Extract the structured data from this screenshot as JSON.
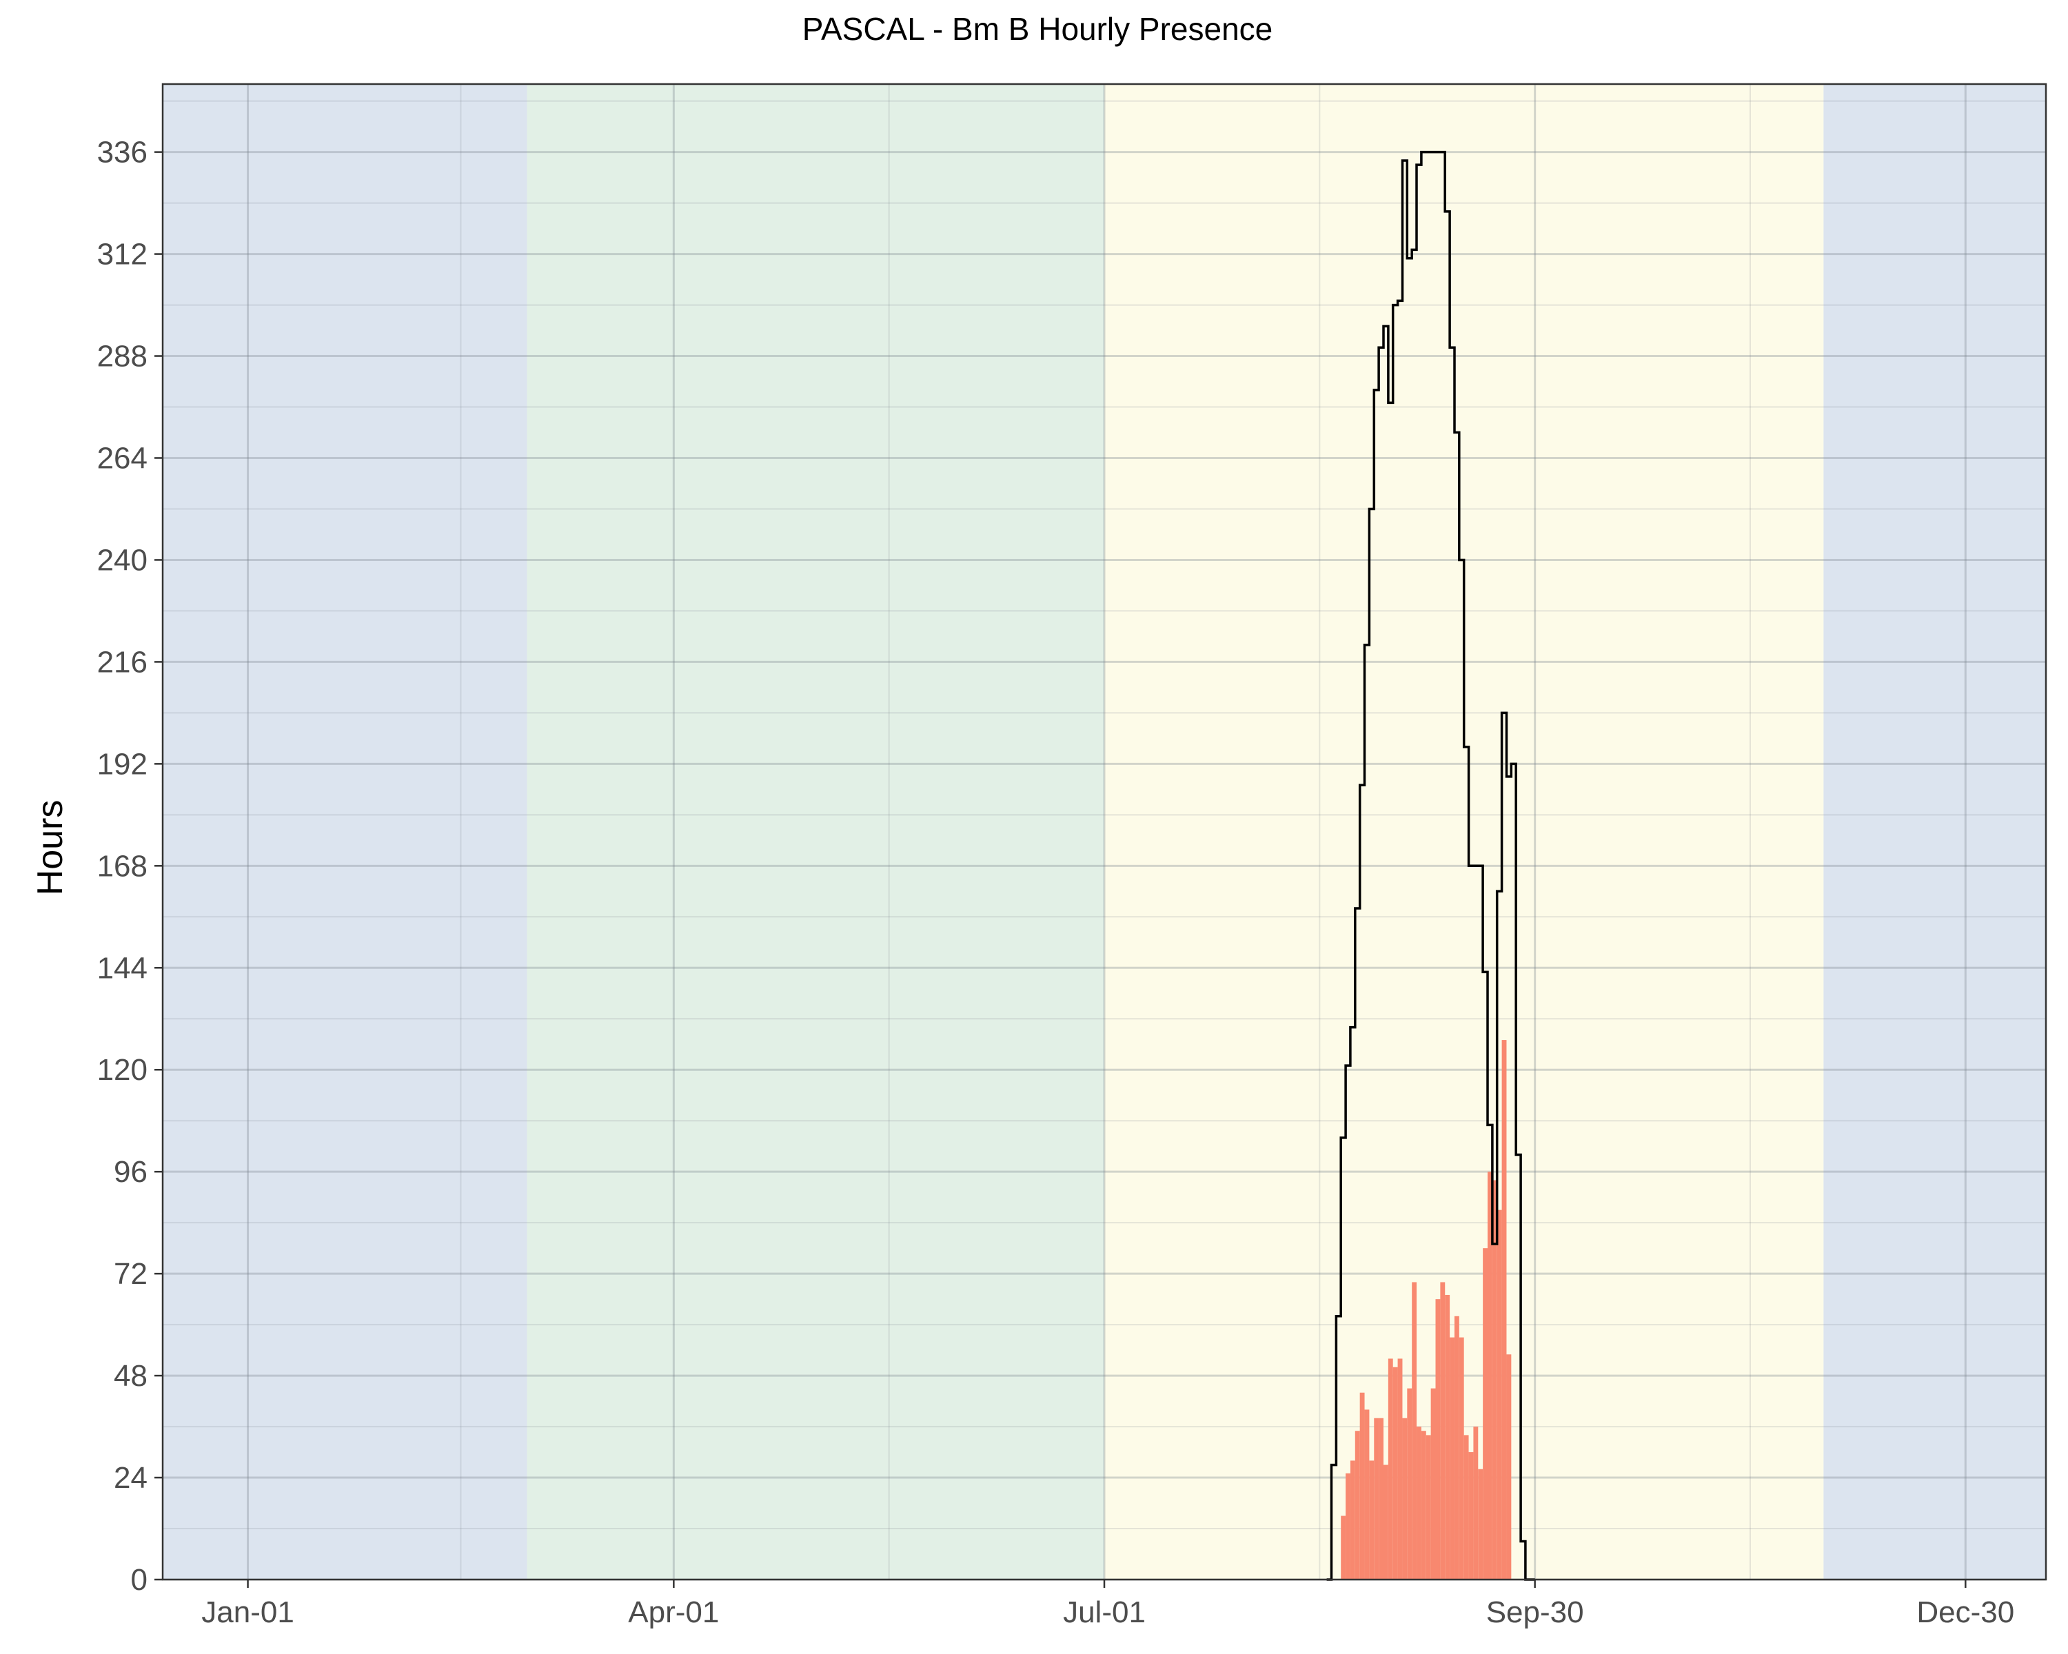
{
  "chart_data": {
    "type": "bar",
    "title": "PASCAL - Bm B Hourly Presence",
    "xlabel": "",
    "ylabel": "Hours",
    "x_ticks": [
      "Jan-01",
      "Apr-01",
      "Jul-01",
      "Sep-30",
      "Dec-30"
    ],
    "x_tick_days": [
      1,
      91,
      182,
      273,
      364
    ],
    "xlim_days": [
      -17,
      381
    ],
    "y_ticks": [
      0,
      24,
      48,
      72,
      96,
      120,
      144,
      168,
      192,
      216,
      240,
      264,
      288,
      312,
      336
    ],
    "ylim": [
      0,
      352
    ],
    "grid": true,
    "season_bands": [
      {
        "name": "winter",
        "start_day": -17,
        "end_day": 60,
        "color": "#dce4ef"
      },
      {
        "name": "spring",
        "start_day": 60,
        "end_day": 182,
        "color": "#e2f0e6"
      },
      {
        "name": "summer",
        "start_day": 182,
        "end_day": 334,
        "color": "#fdfbe8"
      },
      {
        "name": "winter",
        "start_day": 334,
        "end_day": 381,
        "color": "#dce4ef"
      }
    ],
    "series": [
      {
        "kind": "daily_hours",
        "color": "#f8886f",
        "x_days": [
          231,
          232,
          233,
          234,
          235,
          236,
          237,
          238,
          239,
          240,
          241,
          242,
          243,
          244,
          245,
          246,
          247,
          248,
          249,
          250,
          251,
          252,
          253,
          254,
          255,
          256,
          257,
          258,
          259,
          260,
          261,
          262,
          263,
          264,
          265,
          266,
          267,
          268,
          269,
          270,
          271,
          272
        ],
        "values": [
          0,
          15,
          25,
          28,
          35,
          44,
          40,
          28,
          38,
          38,
          27,
          52,
          50,
          52,
          38,
          45,
          70,
          36,
          35,
          34,
          45,
          66,
          70,
          67,
          57,
          62,
          57,
          34,
          30,
          36,
          26,
          78,
          96,
          94,
          87,
          127,
          53,
          0,
          0,
          0,
          0,
          0
        ]
      },
      {
        "kind": "rolling_total_hours",
        "color": "#000000",
        "x_days": [
          229,
          230,
          231,
          232,
          233,
          234,
          235,
          236,
          237,
          238,
          239,
          240,
          241,
          242,
          243,
          244,
          245,
          246,
          247,
          248,
          249,
          250,
          251,
          252,
          253,
          254,
          255,
          256,
          257,
          258,
          259,
          260,
          261,
          262,
          263,
          264,
          265,
          266,
          267,
          268,
          269,
          270,
          271,
          272
        ],
        "values": [
          0,
          27,
          62,
          104,
          121,
          130,
          158,
          187,
          220,
          252,
          280,
          290,
          295,
          277,
          300,
          301,
          334,
          311,
          313,
          333,
          336,
          336,
          336,
          336,
          336,
          322,
          290,
          270,
          240,
          196,
          168,
          168,
          168,
          143,
          107,
          79,
          162,
          204,
          189,
          192,
          100,
          9,
          0,
          0
        ]
      }
    ]
  }
}
